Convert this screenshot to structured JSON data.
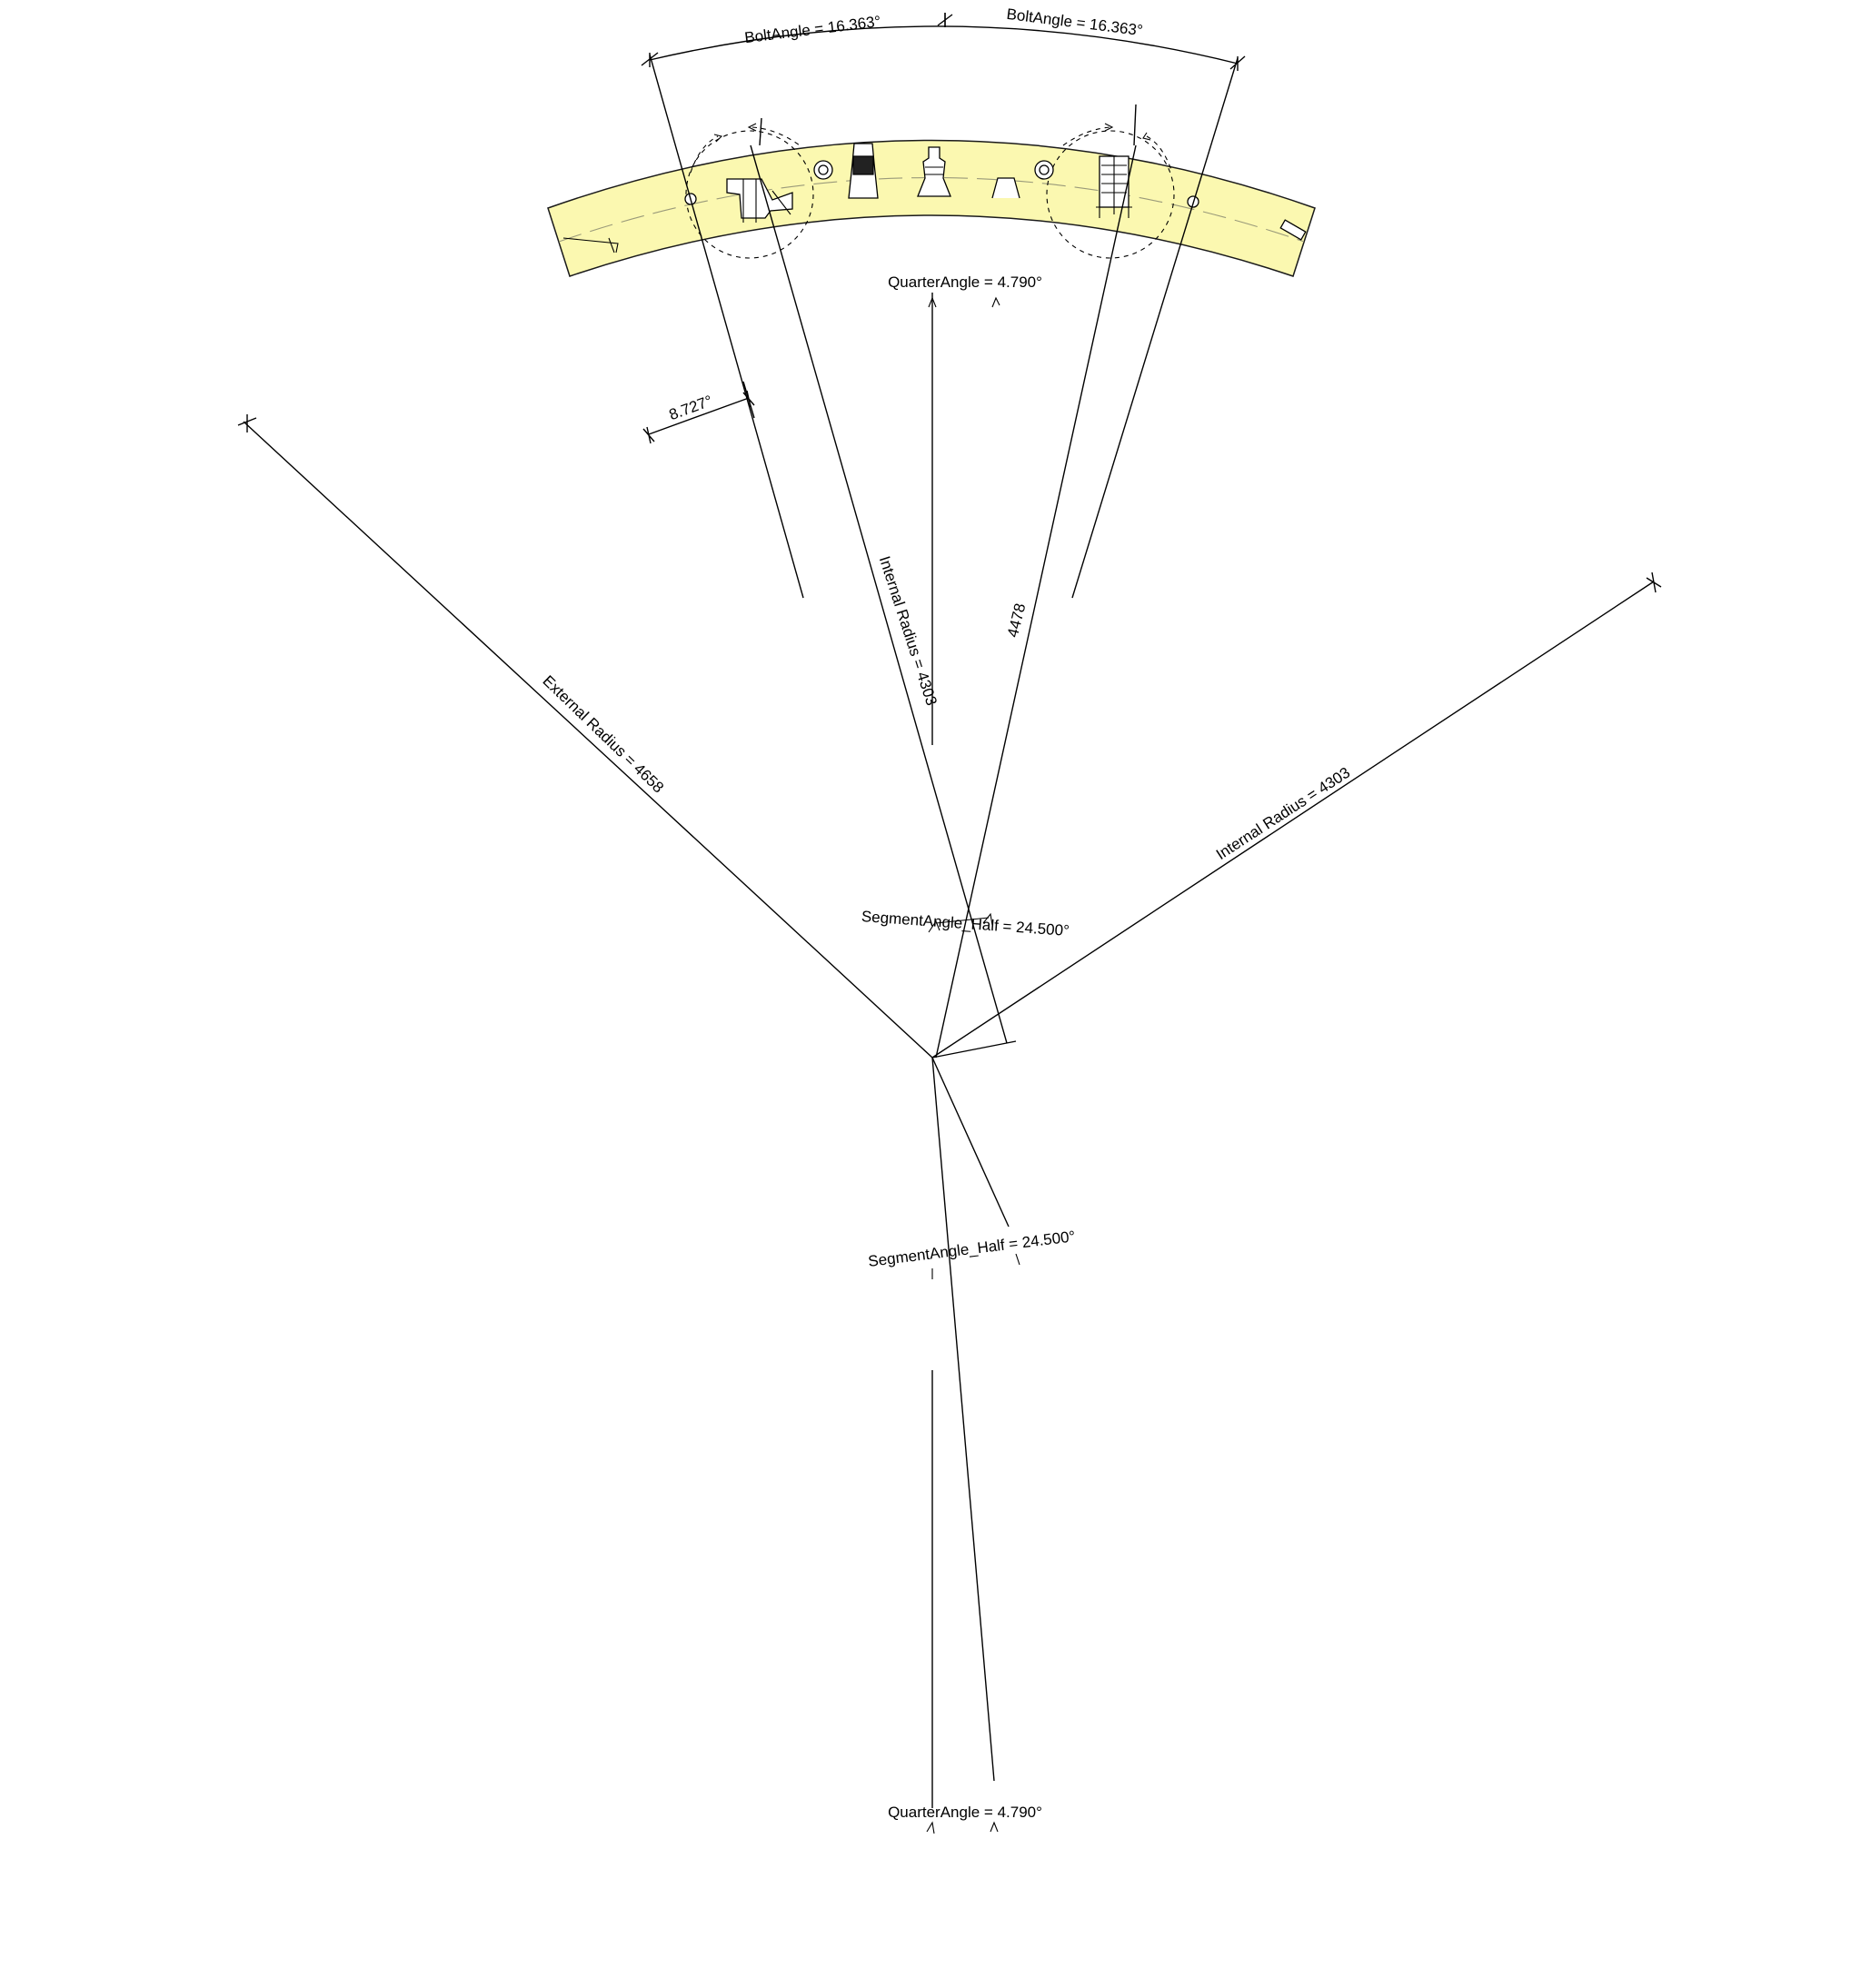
{
  "colors": {
    "segment_fill": "#fbf8b0",
    "line": "#000000",
    "background": "#ffffff"
  },
  "dimensions": {
    "bolt_angle_left": "BoltAngle = 16.363°",
    "bolt_angle_right": "BoltAngle = 16.363°",
    "quarter_angle_top": "QuarterAngle = 4.790°",
    "quarter_angle_bottom": "QuarterAngle = 4.790°",
    "small_angle": "8.727°",
    "internal_radius_center": "Internal Radius = 4303",
    "internal_radius_right": "Internal Radius = 4303",
    "external_radius": "External Radius = 4658",
    "radius_4478": "4478",
    "segment_angle_half_upper": "SegmentAngle_Half = 24.500°",
    "segment_angle_half_lower": "SegmentAngle_Half = 24.500°"
  },
  "icons": {
    "left_bolt_pocket": "bolt-pocket-icon",
    "right_bolt_pocket": "bolt-pocket-icon",
    "grout_plug": "grout-plug-icon",
    "lifting_socket": "lifting-socket-icon",
    "key_notch": "key-notch-icon",
    "dowel_hole": "dowel-hole-icon"
  }
}
